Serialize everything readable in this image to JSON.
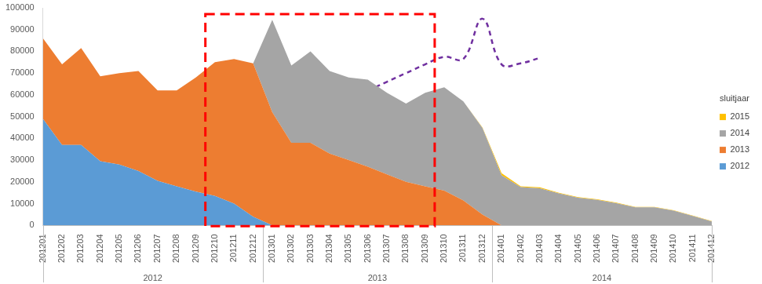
{
  "chart_data": {
    "type": "area",
    "stacked": true,
    "grid": false,
    "legend": "right",
    "legend_title": "sluitjaar",
    "categories": [
      "201201",
      "201202",
      "201203",
      "201204",
      "201205",
      "201206",
      "201207",
      "201208",
      "201209",
      "201210",
      "201211",
      "201212",
      "201301",
      "201302",
      "201303",
      "201304",
      "201305",
      "201306",
      "201307",
      "201308",
      "201309",
      "201310",
      "201311",
      "201312",
      "201401",
      "201402",
      "201403",
      "201404",
      "201405",
      "201406",
      "201407",
      "201408",
      "201409",
      "201410",
      "201411",
      "201412"
    ],
    "category_groups": [
      {
        "label": "2012",
        "first": "201201",
        "last": "201212"
      },
      {
        "label": "2013",
        "first": "201301",
        "last": "201312"
      },
      {
        "label": "2014",
        "first": "201401",
        "last": "201412"
      }
    ],
    "ylim": [
      0,
      100000
    ],
    "yticks": [
      0,
      10000,
      20000,
      30000,
      40000,
      50000,
      60000,
      70000,
      80000,
      90000,
      100000
    ],
    "series": [
      {
        "name": "2012",
        "color": "#5b9bd5",
        "values": [
          49000,
          37000,
          37000,
          29500,
          28000,
          25000,
          20500,
          18000,
          15500,
          13500,
          10000,
          4000,
          0,
          0,
          0,
          0,
          0,
          0,
          0,
          0,
          0,
          0,
          0,
          0,
          0,
          0,
          0,
          0,
          0,
          0,
          0,
          0,
          0,
          0,
          0,
          0
        ]
      },
      {
        "name": "2013",
        "color": "#ed7d31",
        "values": [
          37000,
          37000,
          44500,
          39000,
          42000,
          46000,
          41500,
          44000,
          52500,
          61500,
          66500,
          70500,
          52000,
          38000,
          38000,
          33000,
          30000,
          27000,
          23500,
          20000,
          18000,
          16000,
          11500,
          5000,
          0,
          0,
          0,
          0,
          0,
          0,
          0,
          0,
          0,
          0,
          0,
          0
        ]
      },
      {
        "name": "2014",
        "color": "#a5a5a5",
        "values": [
          0,
          0,
          0,
          0,
          0,
          0,
          0,
          0,
          0,
          0,
          0,
          0,
          42500,
          35500,
          42000,
          38000,
          38000,
          40000,
          37500,
          36000,
          43000,
          47500,
          45500,
          39700,
          23000,
          17600,
          17100,
          14700,
          12700,
          11700,
          10200,
          8300,
          8300,
          6800,
          4300,
          1800
        ]
      },
      {
        "name": "2015",
        "color": "#ffc000",
        "values": [
          0,
          0,
          0,
          0,
          0,
          0,
          0,
          0,
          0,
          0,
          0,
          0,
          0,
          0,
          0,
          0,
          0,
          0,
          0,
          0,
          0,
          0,
          0,
          300,
          1000,
          400,
          400,
          300,
          300,
          300,
          300,
          200,
          200,
          200,
          200,
          200
        ]
      },
      {
        "type": "line",
        "line_style": "dashed",
        "color": "#7030a0",
        "values": [
          null,
          null,
          null,
          null,
          null,
          null,
          null,
          null,
          null,
          null,
          null,
          null,
          null,
          null,
          null,
          null,
          null,
          62000,
          66000,
          70000,
          74000,
          77500,
          76500,
          95000,
          74000,
          74500,
          77000,
          null,
          null,
          null,
          null,
          null,
          null,
          null,
          null,
          null
        ]
      }
    ]
  }
}
